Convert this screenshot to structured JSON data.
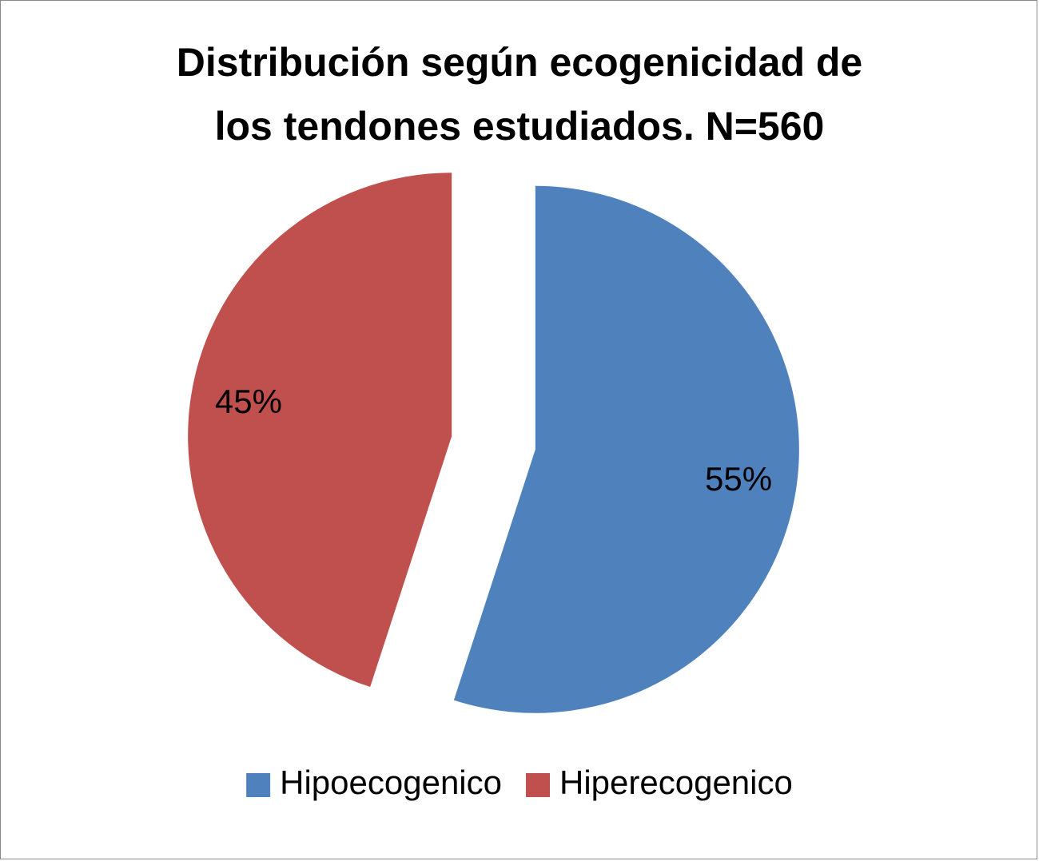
{
  "chart_data": {
    "type": "pie",
    "title": [
      "Distribución según ecogenicidad de",
      "los tendones estudiados. N=560"
    ],
    "categories": [
      "Hipoecogenico",
      "Hiperecogenico"
    ],
    "values": [
      55,
      45
    ],
    "value_labels": [
      "55%",
      "45%"
    ],
    "colors": [
      "#4f81bd",
      "#c0504d"
    ],
    "legend": "bottom"
  }
}
